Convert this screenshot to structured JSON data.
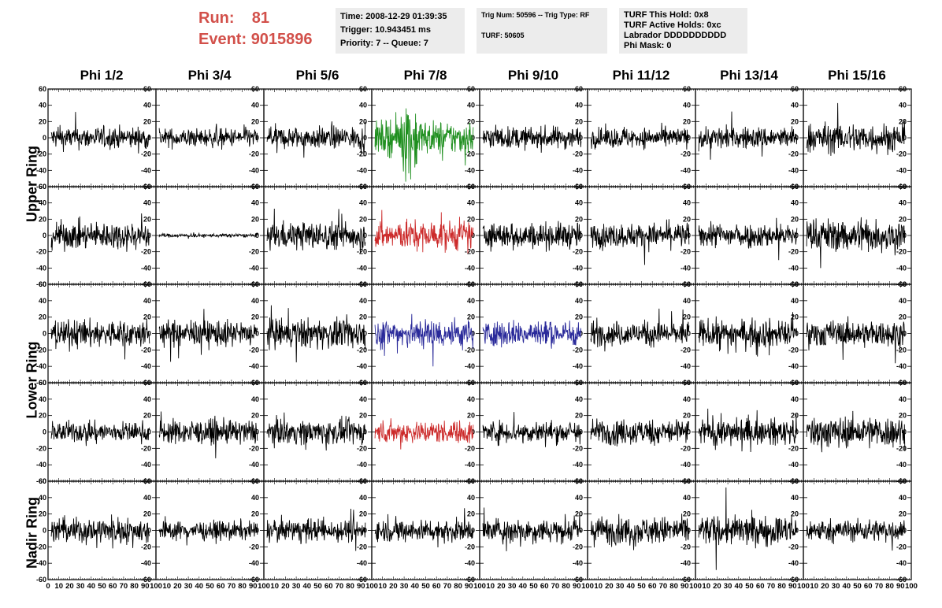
{
  "header": {
    "run_label": "Run:",
    "run_value": "81",
    "event_label": "Event:",
    "event_value": "9015896"
  },
  "info_box_1": {
    "time": "Time: 2008-12-29 01:39:35",
    "trigger": "Trigger: 10.943451 ms",
    "priority": "Priority: 7 -- Queue: 7"
  },
  "info_box_2": {
    "trig": "Trig Num: 50596 -- Trig Type: RF",
    "turf": "TURF: 50605"
  },
  "info_box_3": {
    "hold": "TURF This Hold: 0x8",
    "active": "TURF Active Holds: 0xc",
    "labrador": "Labrador DDDDDDDDDD",
    "phimask": "Phi Mask: 0"
  },
  "columns": [
    "Phi 1/2",
    "Phi 3/4",
    "Phi 5/6",
    "Phi 7/8",
    "Phi 9/10",
    "Phi 11/12",
    "Phi 13/14",
    "Phi 15/16"
  ],
  "rings": [
    "Upper Ring",
    "Lower Ring",
    "Nadir Ring"
  ],
  "colors": {
    "default_trace": "#000000",
    "green_trace": "#1f8f1f",
    "red_trace": "#cc2b2b",
    "blue_trace": "#2a2a9a",
    "run_text": "#d2504a",
    "info_bg": "#ececec"
  },
  "chart_data": {
    "type": "line",
    "grid": false,
    "layout": "5 rows x 8 columns of waveform panels",
    "ylim": [
      -60,
      60
    ],
    "xlim": [
      0,
      100
    ],
    "y_ticks": [
      -60,
      -40,
      -20,
      0,
      20,
      40,
      60
    ],
    "x_ticks": [
      0,
      10,
      20,
      30,
      40,
      50,
      60,
      70,
      80,
      90,
      100
    ],
    "x_tick_row": "0 10 20 30 40 50 60 70 80 90 100",
    "panels": [
      [
        {
          "amp": 12,
          "color": "default"
        },
        {
          "amp": 10,
          "color": "default"
        },
        {
          "amp": 12,
          "color": "default"
        },
        {
          "amp": 18,
          "color": "green"
        },
        {
          "amp": 12,
          "color": "default"
        },
        {
          "amp": 11,
          "color": "default"
        },
        {
          "amp": 12,
          "color": "default"
        },
        {
          "amp": 16,
          "color": "default"
        }
      ],
      [
        {
          "amp": 15,
          "color": "default"
        },
        {
          "amp": 2,
          "color": "default"
        },
        {
          "amp": 15,
          "color": "default"
        },
        {
          "amp": 16,
          "color": "red"
        },
        {
          "amp": 14,
          "color": "default"
        },
        {
          "amp": 13,
          "color": "default"
        },
        {
          "amp": 13,
          "color": "default"
        },
        {
          "amp": 18,
          "color": "default"
        }
      ],
      [
        {
          "amp": 15,
          "color": "default"
        },
        {
          "amp": 14,
          "color": "default"
        },
        {
          "amp": 16,
          "color": "default"
        },
        {
          "amp": 16,
          "color": "blue"
        },
        {
          "amp": 14,
          "color": "blue"
        },
        {
          "amp": 13,
          "color": "default"
        },
        {
          "amp": 15,
          "color": "default"
        },
        {
          "amp": 14,
          "color": "default"
        }
      ],
      [
        {
          "amp": 11,
          "color": "default"
        },
        {
          "amp": 13,
          "color": "default"
        },
        {
          "amp": 13,
          "color": "default"
        },
        {
          "amp": 12,
          "color": "red"
        },
        {
          "amp": 12,
          "color": "default"
        },
        {
          "amp": 14,
          "color": "default"
        },
        {
          "amp": 14,
          "color": "default"
        },
        {
          "amp": 17,
          "color": "default"
        }
      ],
      [
        {
          "amp": 14,
          "color": "default"
        },
        {
          "amp": 10,
          "color": "default"
        },
        {
          "amp": 12,
          "color": "default"
        },
        {
          "amp": 12,
          "color": "default"
        },
        {
          "amp": 13,
          "color": "default"
        },
        {
          "amp": 15,
          "color": "default"
        },
        {
          "amp": 16,
          "color": "default"
        },
        {
          "amp": 12,
          "color": "default"
        }
      ]
    ]
  }
}
